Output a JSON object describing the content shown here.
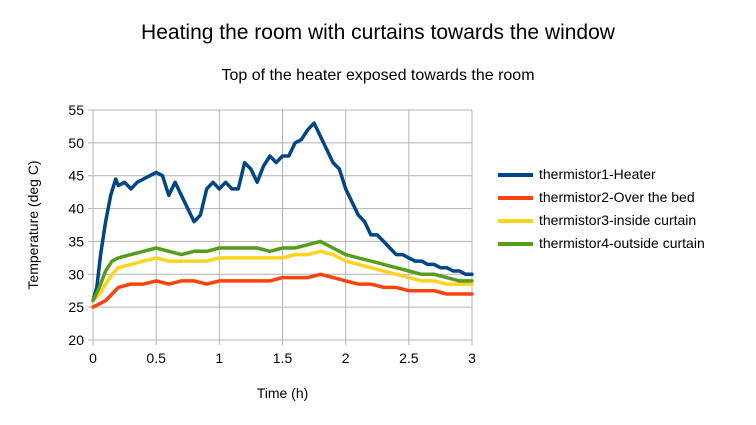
{
  "chart_data": {
    "type": "line",
    "title": "Heating the room with curtains towards the window",
    "subtitle": "Top of the heater exposed towards the room",
    "xlabel": "Time (h)",
    "ylabel": "Temperature (deg C)",
    "xlim": [
      0,
      3
    ],
    "ylim": [
      20,
      55
    ],
    "xticks": [
      "0",
      "0.5",
      "1",
      "1.5",
      "2",
      "2.5",
      "3"
    ],
    "yticks": [
      "20",
      "25",
      "30",
      "35",
      "40",
      "45",
      "50",
      "55"
    ],
    "grid": true,
    "legend_position": "right",
    "series": [
      {
        "name": "thermistor1-Heater",
        "color": "#004586",
        "x": [
          0,
          0.03,
          0.06,
          0.1,
          0.14,
          0.18,
          0.2,
          0.25,
          0.3,
          0.35,
          0.4,
          0.45,
          0.5,
          0.55,
          0.6,
          0.65,
          0.7,
          0.75,
          0.8,
          0.85,
          0.9,
          0.95,
          1.0,
          1.05,
          1.1,
          1.15,
          1.2,
          1.25,
          1.3,
          1.35,
          1.4,
          1.45,
          1.5,
          1.55,
          1.6,
          1.65,
          1.7,
          1.75,
          1.8,
          1.85,
          1.9,
          1.95,
          2.0,
          2.05,
          2.1,
          2.15,
          2.2,
          2.25,
          2.3,
          2.35,
          2.4,
          2.45,
          2.5,
          2.55,
          2.6,
          2.65,
          2.7,
          2.75,
          2.8,
          2.85,
          2.9,
          2.95,
          3.0
        ],
        "y": [
          26,
          28,
          33,
          38,
          42,
          44.5,
          43.5,
          44,
          43,
          44,
          44.5,
          45,
          45.5,
          45,
          42,
          44,
          42,
          40,
          38,
          39,
          43,
          44,
          43,
          44,
          43,
          43,
          47,
          46,
          44,
          46.5,
          48,
          47,
          48,
          48,
          50,
          50.5,
          52,
          53,
          51,
          49,
          47,
          46,
          43,
          41,
          39,
          38,
          36,
          36,
          35,
          34,
          33,
          33,
          32.5,
          32,
          32,
          31.5,
          31.5,
          31,
          31,
          30.5,
          30.5,
          30,
          30
        ]
      },
      {
        "name": "thermistor2-Over the bed",
        "color": "#ff420e",
        "x": [
          0,
          0.05,
          0.1,
          0.15,
          0.2,
          0.3,
          0.4,
          0.5,
          0.6,
          0.7,
          0.8,
          0.9,
          1.0,
          1.1,
          1.2,
          1.3,
          1.4,
          1.5,
          1.6,
          1.7,
          1.8,
          1.9,
          2.0,
          2.1,
          2.2,
          2.3,
          2.4,
          2.5,
          2.6,
          2.7,
          2.8,
          2.9,
          3.0
        ],
        "y": [
          25,
          25.5,
          26,
          27,
          28,
          28.5,
          28.5,
          29,
          28.5,
          29,
          29,
          28.5,
          29,
          29,
          29,
          29,
          29,
          29.5,
          29.5,
          29.5,
          30,
          29.5,
          29,
          28.5,
          28.5,
          28,
          28,
          27.5,
          27.5,
          27.5,
          27,
          27,
          27
        ]
      },
      {
        "name": "thermistor3-inside curtain",
        "color": "#ffd320",
        "x": [
          0,
          0.05,
          0.1,
          0.15,
          0.2,
          0.3,
          0.4,
          0.5,
          0.6,
          0.7,
          0.8,
          0.9,
          1.0,
          1.1,
          1.2,
          1.3,
          1.4,
          1.5,
          1.6,
          1.7,
          1.8,
          1.9,
          2.0,
          2.1,
          2.2,
          2.3,
          2.4,
          2.5,
          2.6,
          2.7,
          2.8,
          2.9,
          3.0
        ],
        "y": [
          26,
          27,
          28.5,
          30,
          31,
          31.5,
          32,
          32.5,
          32,
          32,
          32,
          32,
          32.5,
          32.5,
          32.5,
          32.5,
          32.5,
          32.5,
          33,
          33,
          33.5,
          33,
          32,
          31.5,
          31,
          30.5,
          30,
          29.5,
          29,
          29,
          28.5,
          28.5,
          28.5
        ]
      },
      {
        "name": "thermistor4-outside curtain",
        "color": "#579d1c",
        "x": [
          0,
          0.05,
          0.1,
          0.15,
          0.2,
          0.3,
          0.4,
          0.5,
          0.6,
          0.7,
          0.8,
          0.9,
          1.0,
          1.1,
          1.2,
          1.3,
          1.4,
          1.5,
          1.6,
          1.7,
          1.8,
          1.9,
          2.0,
          2.1,
          2.2,
          2.3,
          2.4,
          2.5,
          2.6,
          2.7,
          2.8,
          2.9,
          3.0
        ],
        "y": [
          26,
          28,
          30.5,
          32,
          32.5,
          33,
          33.5,
          34,
          33.5,
          33,
          33.5,
          33.5,
          34,
          34,
          34,
          34,
          33.5,
          34,
          34,
          34.5,
          35,
          34,
          33,
          32.5,
          32,
          31.5,
          31,
          30.5,
          30,
          30,
          29.5,
          29,
          29
        ]
      }
    ]
  }
}
